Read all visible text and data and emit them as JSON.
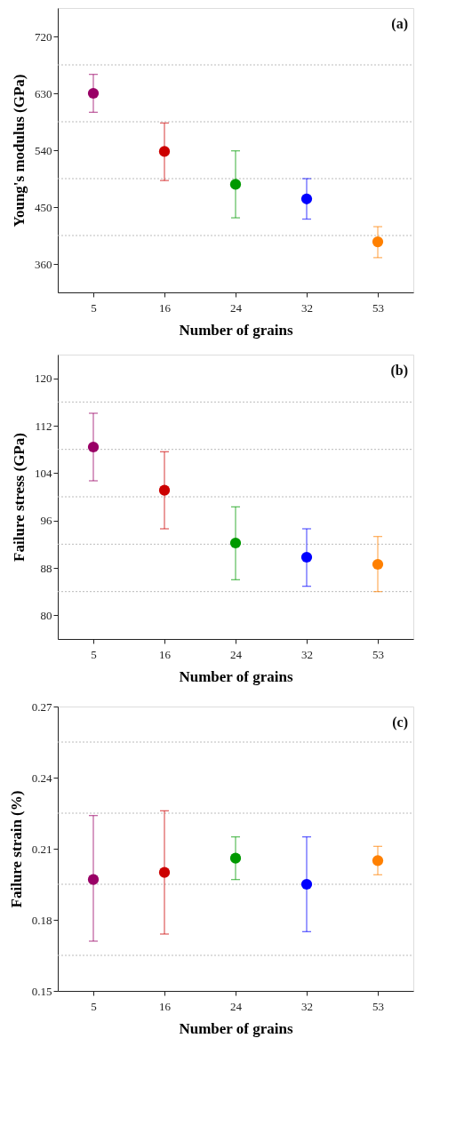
{
  "chart_data": [
    {
      "type": "scatter",
      "categories": [
        "5",
        "16",
        "24",
        "32",
        "53"
      ],
      "xlabel": "Number of grains",
      "ylabel": "Young's modulus (GPa)",
      "annotations": [
        "(a)"
      ],
      "values": [
        630,
        538,
        486,
        463,
        395
      ],
      "errors": [
        [
          600,
          660
        ],
        [
          492,
          583
        ],
        [
          433,
          539
        ],
        [
          431,
          495
        ],
        [
          370,
          419
        ]
      ],
      "colors": [
        "#990066",
        "#cc0000",
        "#009900",
        "#0000ff",
        "#ff8000"
      ],
      "ylim": [
        315,
        765
      ],
      "yticks": [
        360,
        {
          "value": 405,
          "label": null
        },
        450,
        {
          "value": 495,
          "label": null
        },
        540,
        {
          "value": 585,
          "label": null
        },
        630,
        {
          "value": 675,
          "label": null
        },
        720
      ],
      "grid": "y",
      "marker": "circle",
      "legend": false
    },
    {
      "type": "scatter",
      "categories": [
        "5",
        "16",
        "24",
        "32",
        "53"
      ],
      "xlabel": "Number of grains",
      "ylabel": "Failure stress (GPa)",
      "annotations": [
        "(b)"
      ],
      "values": [
        108.4,
        101.1,
        92.2,
        89.8,
        88.6
      ],
      "errors": [
        [
          102.7,
          114.1
        ],
        [
          94.6,
          107.6
        ],
        [
          86.0,
          98.3
        ],
        [
          84.9,
          94.6
        ],
        [
          84.0,
          93.3
        ]
      ],
      "colors": [
        "#990066",
        "#cc0000",
        "#009900",
        "#0000ff",
        "#ff8000"
      ],
      "ylim": [
        76,
        124
      ],
      "yticks": [
        80,
        {
          "value": 84,
          "label": null
        },
        88,
        {
          "value": 92,
          "label": null
        },
        96,
        {
          "value": 100,
          "label": null
        },
        104,
        {
          "value": 108,
          "label": null
        },
        112,
        {
          "value": 116,
          "label": null
        },
        120
      ],
      "grid": "y",
      "marker": "circle",
      "legend": false
    },
    {
      "type": "scatter",
      "categories": [
        "5",
        "16",
        "24",
        "32",
        "53"
      ],
      "xlabel": "Number of grains",
      "ylabel": "Failure strain (%)",
      "annotations": [
        "(c)"
      ],
      "values": [
        0.197,
        0.2,
        0.206,
        0.195,
        0.205
      ],
      "errors": [
        [
          0.171,
          0.224
        ],
        [
          0.174,
          0.226
        ],
        [
          0.197,
          0.215
        ],
        [
          0.175,
          0.215
        ],
        [
          0.199,
          0.211
        ]
      ],
      "colors": [
        "#990066",
        "#cc0000",
        "#009900",
        "#0000ff",
        "#ff8000"
      ],
      "ylim": [
        0.15,
        0.27
      ],
      "yticks": [
        {
          "value": 0.15,
          "label": "0.15"
        },
        {
          "value": 0.165,
          "label": null
        },
        {
          "value": 0.18,
          "label": "0.18"
        },
        {
          "value": 0.195,
          "label": null
        },
        {
          "value": 0.21,
          "label": "0.21"
        },
        {
          "value": 0.225,
          "label": null
        },
        {
          "value": 0.24,
          "label": "0.24"
        },
        {
          "value": 0.255,
          "label": null
        },
        {
          "value": 0.27,
          "label": "0.27"
        }
      ],
      "grid": "y",
      "marker": "circle",
      "legend": false
    }
  ]
}
